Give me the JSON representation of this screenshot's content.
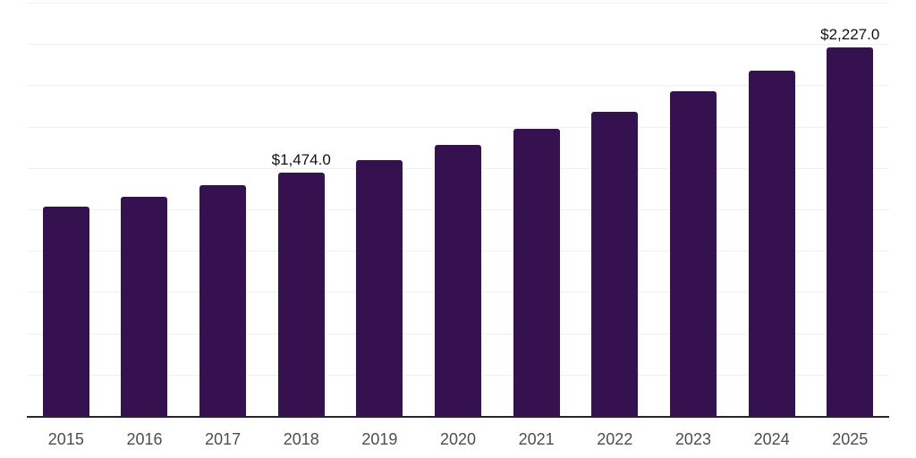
{
  "chart_data": {
    "type": "bar",
    "title": "",
    "xlabel": "",
    "ylabel": "",
    "categories": [
      "2015",
      "2016",
      "2017",
      "2018",
      "2019",
      "2020",
      "2021",
      "2022",
      "2023",
      "2024",
      "2025"
    ],
    "values": [
      1267,
      1325,
      1396,
      1474,
      1550,
      1638,
      1738,
      1838,
      1962,
      2087,
      2227
    ],
    "data_labels": {
      "2018": "$1,474.0",
      "2025": "$2,227.0"
    },
    "ylim": [
      0,
      2500
    ],
    "gridline_step": 250,
    "grid": "horizontal",
    "legend": "none",
    "y_axis_tick_labels_visible": false
  },
  "colors": {
    "bar": "#351150",
    "gridline": "#f0f0f0",
    "axis": "#262626",
    "tick_label": "#4d4d4d",
    "value_label": "#111111",
    "background": "#ffffff"
  }
}
